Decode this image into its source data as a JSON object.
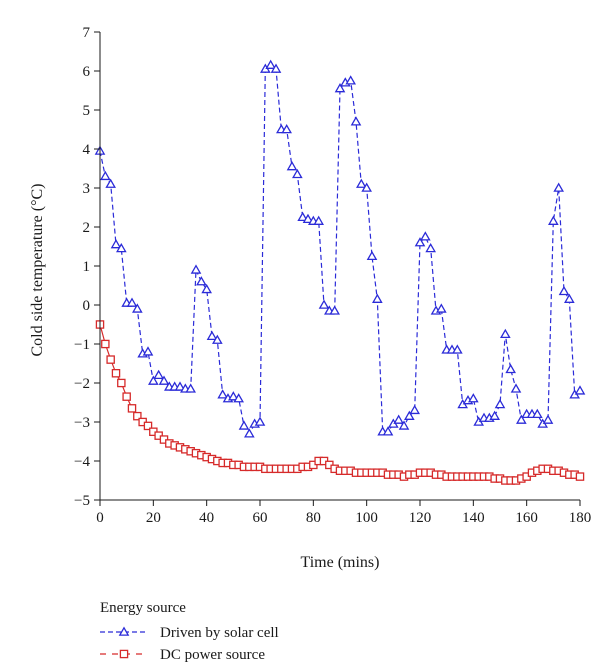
{
  "chart_data": {
    "type": "line",
    "xlabel": "Time (mins)",
    "ylabel": "Cold side temperature (°C)",
    "xlim": [
      0,
      180
    ],
    "ylim": [
      -5,
      7
    ],
    "xticks": [
      0,
      20,
      40,
      60,
      80,
      100,
      120,
      140,
      160,
      180
    ],
    "yticks": [
      -5,
      -4,
      -3,
      -2,
      -1,
      0,
      1,
      2,
      3,
      4,
      5,
      6,
      7
    ],
    "grid": false,
    "legend_title": "Energy source",
    "legend_position": "bottom-left",
    "series": [
      {
        "name": "Driven by solar cell",
        "color": "#2b2bd8",
        "marker": "triangle",
        "line_style": "dashed",
        "x": [
          0,
          2,
          4,
          6,
          8,
          10,
          12,
          14,
          16,
          18,
          20,
          22,
          24,
          26,
          28,
          30,
          32,
          34,
          36,
          38,
          40,
          42,
          44,
          46,
          48,
          50,
          52,
          54,
          56,
          58,
          60,
          62,
          64,
          66,
          68,
          70,
          72,
          74,
          76,
          78,
          80,
          82,
          84,
          86,
          88,
          90,
          92,
          94,
          96,
          98,
          100,
          102,
          104,
          106,
          108,
          110,
          112,
          114,
          116,
          118,
          120,
          122,
          124,
          126,
          128,
          130,
          132,
          134,
          136,
          138,
          140,
          142,
          144,
          146,
          148,
          150,
          152,
          154,
          156,
          158,
          160,
          162,
          164,
          166,
          168,
          170,
          172,
          174,
          176,
          178,
          180
        ],
        "y": [
          3.95,
          3.3,
          3.1,
          1.55,
          1.45,
          0.05,
          0.05,
          -0.1,
          -1.25,
          -1.2,
          -1.95,
          -1.8,
          -1.95,
          -2.1,
          -2.1,
          -2.1,
          -2.15,
          -2.15,
          0.9,
          0.6,
          0.4,
          -0.8,
          -0.9,
          -2.3,
          -2.4,
          -2.35,
          -2.4,
          -3.1,
          -3.3,
          -3.05,
          -3.0,
          6.05,
          6.15,
          6.05,
          4.5,
          4.5,
          3.55,
          3.35,
          2.25,
          2.2,
          2.15,
          2.15,
          0.0,
          -0.15,
          -0.15,
          5.55,
          5.7,
          5.75,
          4.7,
          3.1,
          3.0,
          1.25,
          0.15,
          -3.25,
          -3.25,
          -3.05,
          -2.95,
          -3.1,
          -2.85,
          -2.7,
          1.6,
          1.75,
          1.45,
          -0.15,
          -0.1,
          -1.15,
          -1.15,
          -1.15,
          -2.55,
          -2.45,
          -2.4,
          -3.0,
          -2.9,
          -2.9,
          -2.85,
          -2.55,
          -0.75,
          -1.65,
          -2.15,
          -2.95,
          -2.8,
          -2.8,
          -2.8,
          -3.05,
          -2.95,
          2.15,
          3.0,
          0.35,
          0.15,
          -2.3,
          -2.2
        ]
      },
      {
        "name": "DC power source",
        "color": "#d62a2a",
        "marker": "square",
        "line_style": "solid",
        "x": [
          0,
          2,
          4,
          6,
          8,
          10,
          12,
          14,
          16,
          18,
          20,
          22,
          24,
          26,
          28,
          30,
          32,
          34,
          36,
          38,
          40,
          42,
          44,
          46,
          48,
          50,
          52,
          54,
          56,
          58,
          60,
          62,
          64,
          66,
          68,
          70,
          72,
          74,
          76,
          78,
          80,
          82,
          84,
          86,
          88,
          90,
          92,
          94,
          96,
          98,
          100,
          102,
          104,
          106,
          108,
          110,
          112,
          114,
          116,
          118,
          120,
          122,
          124,
          126,
          128,
          130,
          132,
          134,
          136,
          138,
          140,
          142,
          144,
          146,
          148,
          150,
          152,
          154,
          156,
          158,
          160,
          162,
          164,
          166,
          168,
          170,
          172,
          174,
          176,
          178,
          180
        ],
        "y": [
          -0.5,
          -1.0,
          -1.4,
          -1.75,
          -2.0,
          -2.35,
          -2.65,
          -2.85,
          -3.0,
          -3.1,
          -3.25,
          -3.35,
          -3.45,
          -3.55,
          -3.6,
          -3.65,
          -3.7,
          -3.75,
          -3.8,
          -3.85,
          -3.9,
          -3.95,
          -4.0,
          -4.05,
          -4.05,
          -4.1,
          -4.1,
          -4.15,
          -4.15,
          -4.15,
          -4.15,
          -4.2,
          -4.2,
          -4.2,
          -4.2,
          -4.2,
          -4.2,
          -4.2,
          -4.15,
          -4.15,
          -4.1,
          -4.0,
          -4.0,
          -4.1,
          -4.2,
          -4.25,
          -4.25,
          -4.25,
          -4.3,
          -4.3,
          -4.3,
          -4.3,
          -4.3,
          -4.3,
          -4.35,
          -4.35,
          -4.35,
          -4.4,
          -4.35,
          -4.35,
          -4.3,
          -4.3,
          -4.3,
          -4.35,
          -4.35,
          -4.4,
          -4.4,
          -4.4,
          -4.4,
          -4.4,
          -4.4,
          -4.4,
          -4.4,
          -4.4,
          -4.45,
          -4.45,
          -4.5,
          -4.5,
          -4.5,
          -4.45,
          -4.4,
          -4.3,
          -4.25,
          -4.2,
          -4.2,
          -4.25,
          -4.25,
          -4.3,
          -4.35,
          -4.35,
          -4.4
        ]
      }
    ]
  }
}
